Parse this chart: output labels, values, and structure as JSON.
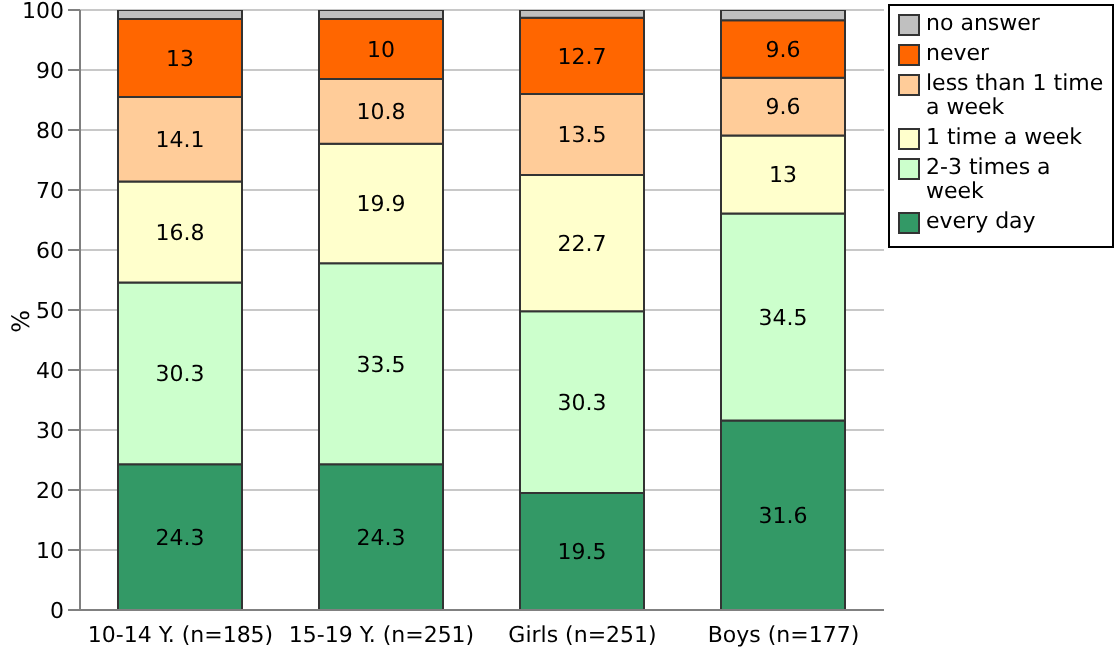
{
  "chart_data": {
    "type": "bar",
    "stacked": true,
    "ylabel": "%",
    "categories": [
      "10-14 Y. (n=185)",
      "15-19 Y. (n=251)",
      "Girls (n=251)",
      "Boys (n=177)"
    ],
    "series": [
      {
        "name": "every day",
        "color": "#339966",
        "values": [
          24.3,
          24.3,
          19.5,
          31.6
        ],
        "value_labels": [
          "24.3",
          "24.3",
          "19.5",
          "31.6"
        ]
      },
      {
        "name": "2-3 times a week",
        "color": "#ccffcc",
        "values": [
          30.3,
          33.5,
          30.3,
          34.5
        ],
        "value_labels": [
          "30.3",
          "33.5",
          "30.3",
          "34.5"
        ]
      },
      {
        "name": "1 time a week",
        "color": "#ffffcc",
        "values": [
          16.8,
          19.9,
          22.7,
          13
        ],
        "value_labels": [
          "16.8",
          "19.9",
          "22.7",
          "13"
        ]
      },
      {
        "name": "less than 1 time a week",
        "color": "#ffcc99",
        "values": [
          14.1,
          10.8,
          13.5,
          9.6
        ],
        "value_labels": [
          "14.1",
          "10.8",
          "13.5",
          "9.6"
        ]
      },
      {
        "name": "never",
        "color": "#ff6600",
        "values": [
          13,
          10,
          12.7,
          9.6
        ],
        "value_labels": [
          "13",
          "10",
          "12.7",
          "9.6"
        ]
      },
      {
        "name": "no answer",
        "color": "#c0c0c0",
        "values": [
          1.5,
          1.5,
          1.3,
          1.7
        ],
        "value_labels": [
          null,
          null,
          null,
          null
        ]
      }
    ],
    "ylim": [
      0,
      100
    ],
    "yticks": [
      0,
      10,
      20,
      30,
      40,
      50,
      60,
      70,
      80,
      90,
      100
    ],
    "grid": "y",
    "legend": "top right"
  }
}
